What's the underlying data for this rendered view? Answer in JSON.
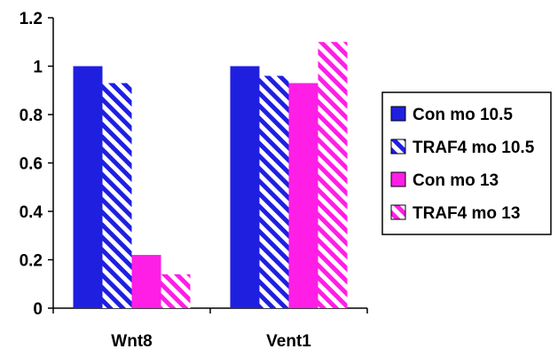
{
  "chart_data": {
    "type": "bar",
    "categories": [
      "Wnt8",
      "Vent1"
    ],
    "series": [
      {
        "name": "Con mo 10.5",
        "values": [
          1.0,
          1.0
        ],
        "color": "#1f1fe0",
        "pattern": "solid"
      },
      {
        "name": "TRAF4 mo 10.5",
        "values": [
          0.93,
          0.96
        ],
        "color": "#1f1fe0",
        "pattern": "hatched"
      },
      {
        "name": "Con mo 13",
        "values": [
          0.22,
          0.93
        ],
        "color": "#ff1ee6",
        "pattern": "solid"
      },
      {
        "name": "TRAF4 mo 13",
        "values": [
          0.14,
          1.1
        ],
        "color": "#ff1ee6",
        "pattern": "hatched"
      }
    ],
    "ylim": [
      0,
      1.2
    ],
    "yticks": [
      "0",
      "0.2",
      "0.4",
      "0.6",
      "0.8",
      "1",
      "1.2"
    ],
    "ytick_values": [
      0,
      0.2,
      0.4,
      0.6,
      0.8,
      1.0,
      1.2
    ],
    "title": "",
    "xlabel": "",
    "ylabel": "",
    "grid": false,
    "legend_position": "right"
  }
}
